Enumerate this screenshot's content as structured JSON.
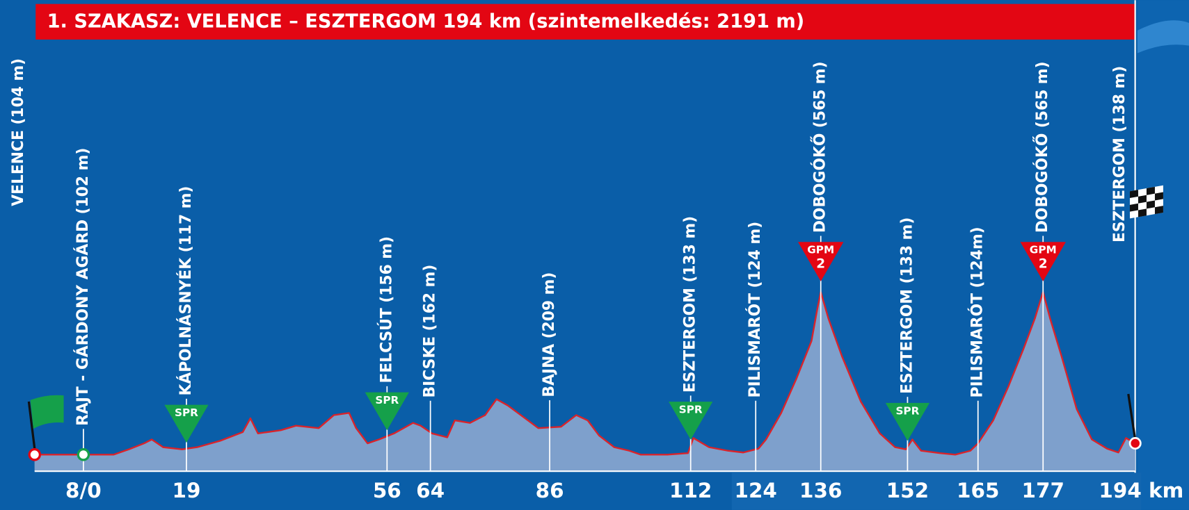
{
  "chart_data": {
    "type": "area",
    "title": "1. SZAKASZ: VELENCE – ESZTERGOM 194 km (szintemelkedés: 2191 m)",
    "xlim": [
      -9,
      194
    ],
    "ylim": [
      56,
      700
    ],
    "xticks": [
      {
        "value": 0,
        "label": "8/0"
      },
      19,
      56,
      64,
      86,
      112,
      124,
      136,
      152,
      165,
      177,
      {
        "value": 194,
        "label": "194 km"
      }
    ],
    "x": [
      -9,
      0,
      5.6,
      8.4,
      11.2,
      12.6,
      14.7,
      18.2,
      21,
      25.2,
      29.4,
      30.8,
      32.2,
      36.4,
      39.2,
      43.4,
      46.2,
      49,
      50.3,
      52.4,
      54.5,
      57.3,
      60.8,
      62.2,
      64.3,
      67.1,
      68.5,
      71.3,
      74.1,
      76.2,
      78.3,
      81.1,
      83.9,
      88.1,
      90.9,
      93,
      95.1,
      97.9,
      100.7,
      102.8,
      107.7,
      111.5,
      112.5,
      115.4,
      118.9,
      121.7,
      124.5,
      125.9,
      128.7,
      131.5,
      134.3,
      135.3,
      136,
      137.4,
      139.9,
      143.4,
      146.9,
      149.7,
      151.7,
      152.9,
      154.5,
      158,
      160.8,
      163.6,
      165,
      167.8,
      170.6,
      173.4,
      175.5,
      177,
      178.3,
      180.4,
      183.2,
      186,
      188.8,
      190.9,
      192.3,
      194
    ],
    "values": [
      103,
      103,
      103,
      118,
      135,
      146,
      124,
      118,
      124,
      142,
      167,
      206,
      163,
      172,
      185,
      178,
      215,
      221,
      178,
      135,
      146,
      163,
      193,
      185,
      163,
      152,
      200,
      193,
      215,
      260,
      242,
      210,
      178,
      182,
      215,
      200,
      157,
      124,
      114,
      103,
      103,
      107,
      150,
      124,
      114,
      109,
      120,
      146,
      221,
      318,
      425,
      511,
      564,
      489,
      382,
      253,
      163,
      124,
      118,
      146,
      114,
      107,
      103,
      114,
      135,
      200,
      296,
      403,
      489,
      564,
      489,
      382,
      232,
      146,
      120,
      109,
      150,
      135
    ],
    "color": "#d9232a",
    "fill": "#7ea0cc",
    "start": {
      "label": "VELENCE (104 m)",
      "x": -9
    },
    "finish": {
      "label": "ESZTERGOM (138 m)",
      "x": 194
    },
    "waypoints": [
      {
        "label": "RAJT - GÁRDONY AGÁRD (102 m)",
        "x": 0
      },
      {
        "label": "KÁPOLNÁSNYÉK (117 m)",
        "x": 19,
        "marker": {
          "label": "SPR",
          "color": "#15a04a"
        }
      },
      {
        "label": "FELCSÚT (156 m)",
        "x": 56,
        "marker": {
          "label": "SPR",
          "color": "#15a04a"
        }
      },
      {
        "label": "BICSKE (162 m)",
        "x": 64
      },
      {
        "label": "BAJNA (209 m)",
        "x": 86
      },
      {
        "label": "ESZTERGOM (133 m)",
        "x": 112,
        "marker": {
          "label": "SPR",
          "color": "#15a04a"
        }
      },
      {
        "label": "PILISMARÓT (124 m)",
        "x": 124
      },
      {
        "label": "DOBOGÓKŐ (565 m)",
        "x": 136,
        "marker": {
          "label": "GPM",
          "category": "2",
          "color": "#e30613"
        }
      },
      {
        "label": "ESZTERGOM (133 m)",
        "x": 152,
        "marker": {
          "label": "SPR",
          "color": "#15a04a"
        }
      },
      {
        "label": "PILISMARÓT (124m)",
        "x": 165
      },
      {
        "label": "DOBOGÓKŐ (565 m)",
        "x": 177,
        "marker": {
          "label": "GPM",
          "category": "2",
          "color": "#e30613"
        }
      }
    ]
  }
}
